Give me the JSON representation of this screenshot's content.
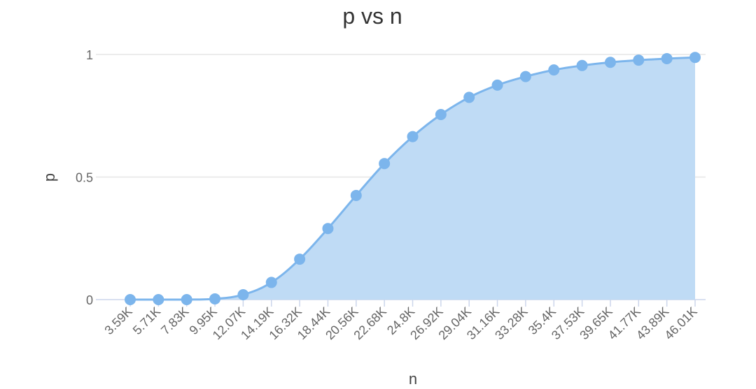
{
  "chart_data": {
    "type": "area",
    "title": "p vs n",
    "xlabel": "n",
    "ylabel": "p",
    "categories": [
      "3.59K",
      "5.71K",
      "7.83K",
      "9.95K",
      "12.07K",
      "14.19K",
      "16.32K",
      "18.44K",
      "20.56K",
      "22.68K",
      "24.8K",
      "26.92K",
      "29.04K",
      "31.16K",
      "33.28K",
      "35.4K",
      "37.53K",
      "39.65K",
      "41.77K",
      "43.89K",
      "46.01K"
    ],
    "series": [
      {
        "values": [
          0.0,
          0.0,
          0.0,
          0.003,
          0.02,
          0.07,
          0.165,
          0.29,
          0.425,
          0.555,
          0.665,
          0.755,
          0.825,
          0.875,
          0.91,
          0.937,
          0.955,
          0.968,
          0.977,
          0.983,
          0.988
        ]
      }
    ],
    "yticks": [
      "0",
      "0.5",
      "1"
    ],
    "ylim": [
      0,
      1
    ],
    "grid": true,
    "legend": "none",
    "colors": {
      "line": "#7cb5ec",
      "fill": "#bcd9f4",
      "marker": "#7cb5ec"
    }
  }
}
